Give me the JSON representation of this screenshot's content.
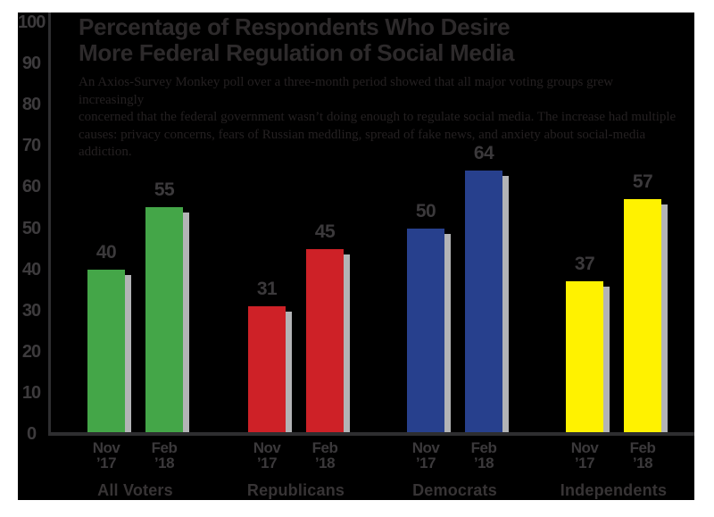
{
  "chart_data": {
    "type": "bar",
    "title": "Percentage of Respondents Who Desire More Federal Regulation of Social Media",
    "title_lines": [
      "Percentage of Respondents Who Desire",
      "More Federal Regulation of Social Media"
    ],
    "subtitle": "An Axios-Survey Monkey poll over a three-month period showed that all major voting groups grew increasingly concerned that the federal government wasn’t doing enough to regulate social media. The increase had multiple causes: privacy concerns, fears of Russian meddling, spread of fake news, and anxiety about social-media addiction.",
    "subtitle_lines": [
      "An Axios-Survey Monkey poll over a three-month period showed that all major voting groups grew increasingly",
      "concerned that the federal government wasn’t doing enough to regulate social media. The increase had multiple",
      "causes: privacy concerns, fears of Russian meddling, spread of fake news, and anxiety about social-media addiction."
    ],
    "categories": [
      "All Voters",
      "Republicans",
      "Democrats",
      "Independents"
    ],
    "series": [
      {
        "name": "Nov ’17",
        "label_lines": [
          "Nov",
          "’17"
        ],
        "values": [
          40,
          31,
          50,
          37
        ]
      },
      {
        "name": "Feb ’18",
        "label_lines": [
          "Feb",
          "’18"
        ],
        "values": [
          55,
          45,
          64,
          57
        ]
      }
    ],
    "group_colors": [
      "#44A648",
      "#CE2127",
      "#27408D",
      "#FFF200"
    ],
    "ylim": [
      0,
      100
    ],
    "yticks": [
      0,
      10,
      20,
      30,
      40,
      50,
      60,
      70,
      80,
      90,
      100
    ],
    "xlabel": "",
    "ylabel": "",
    "grid": false,
    "legend": "none",
    "bar_value_labels": true
  },
  "colors": {
    "page_background": "#ffffff",
    "panel_background": "#000000",
    "title_text": "#2d2a2b",
    "subtitle_text": "#242021",
    "tick_text": "#3d3b3d",
    "value_text": "#3b393b",
    "group_label_text": "#373435",
    "axis_line": "#2e2e30",
    "bar_shadow": "#b3b4b6"
  }
}
